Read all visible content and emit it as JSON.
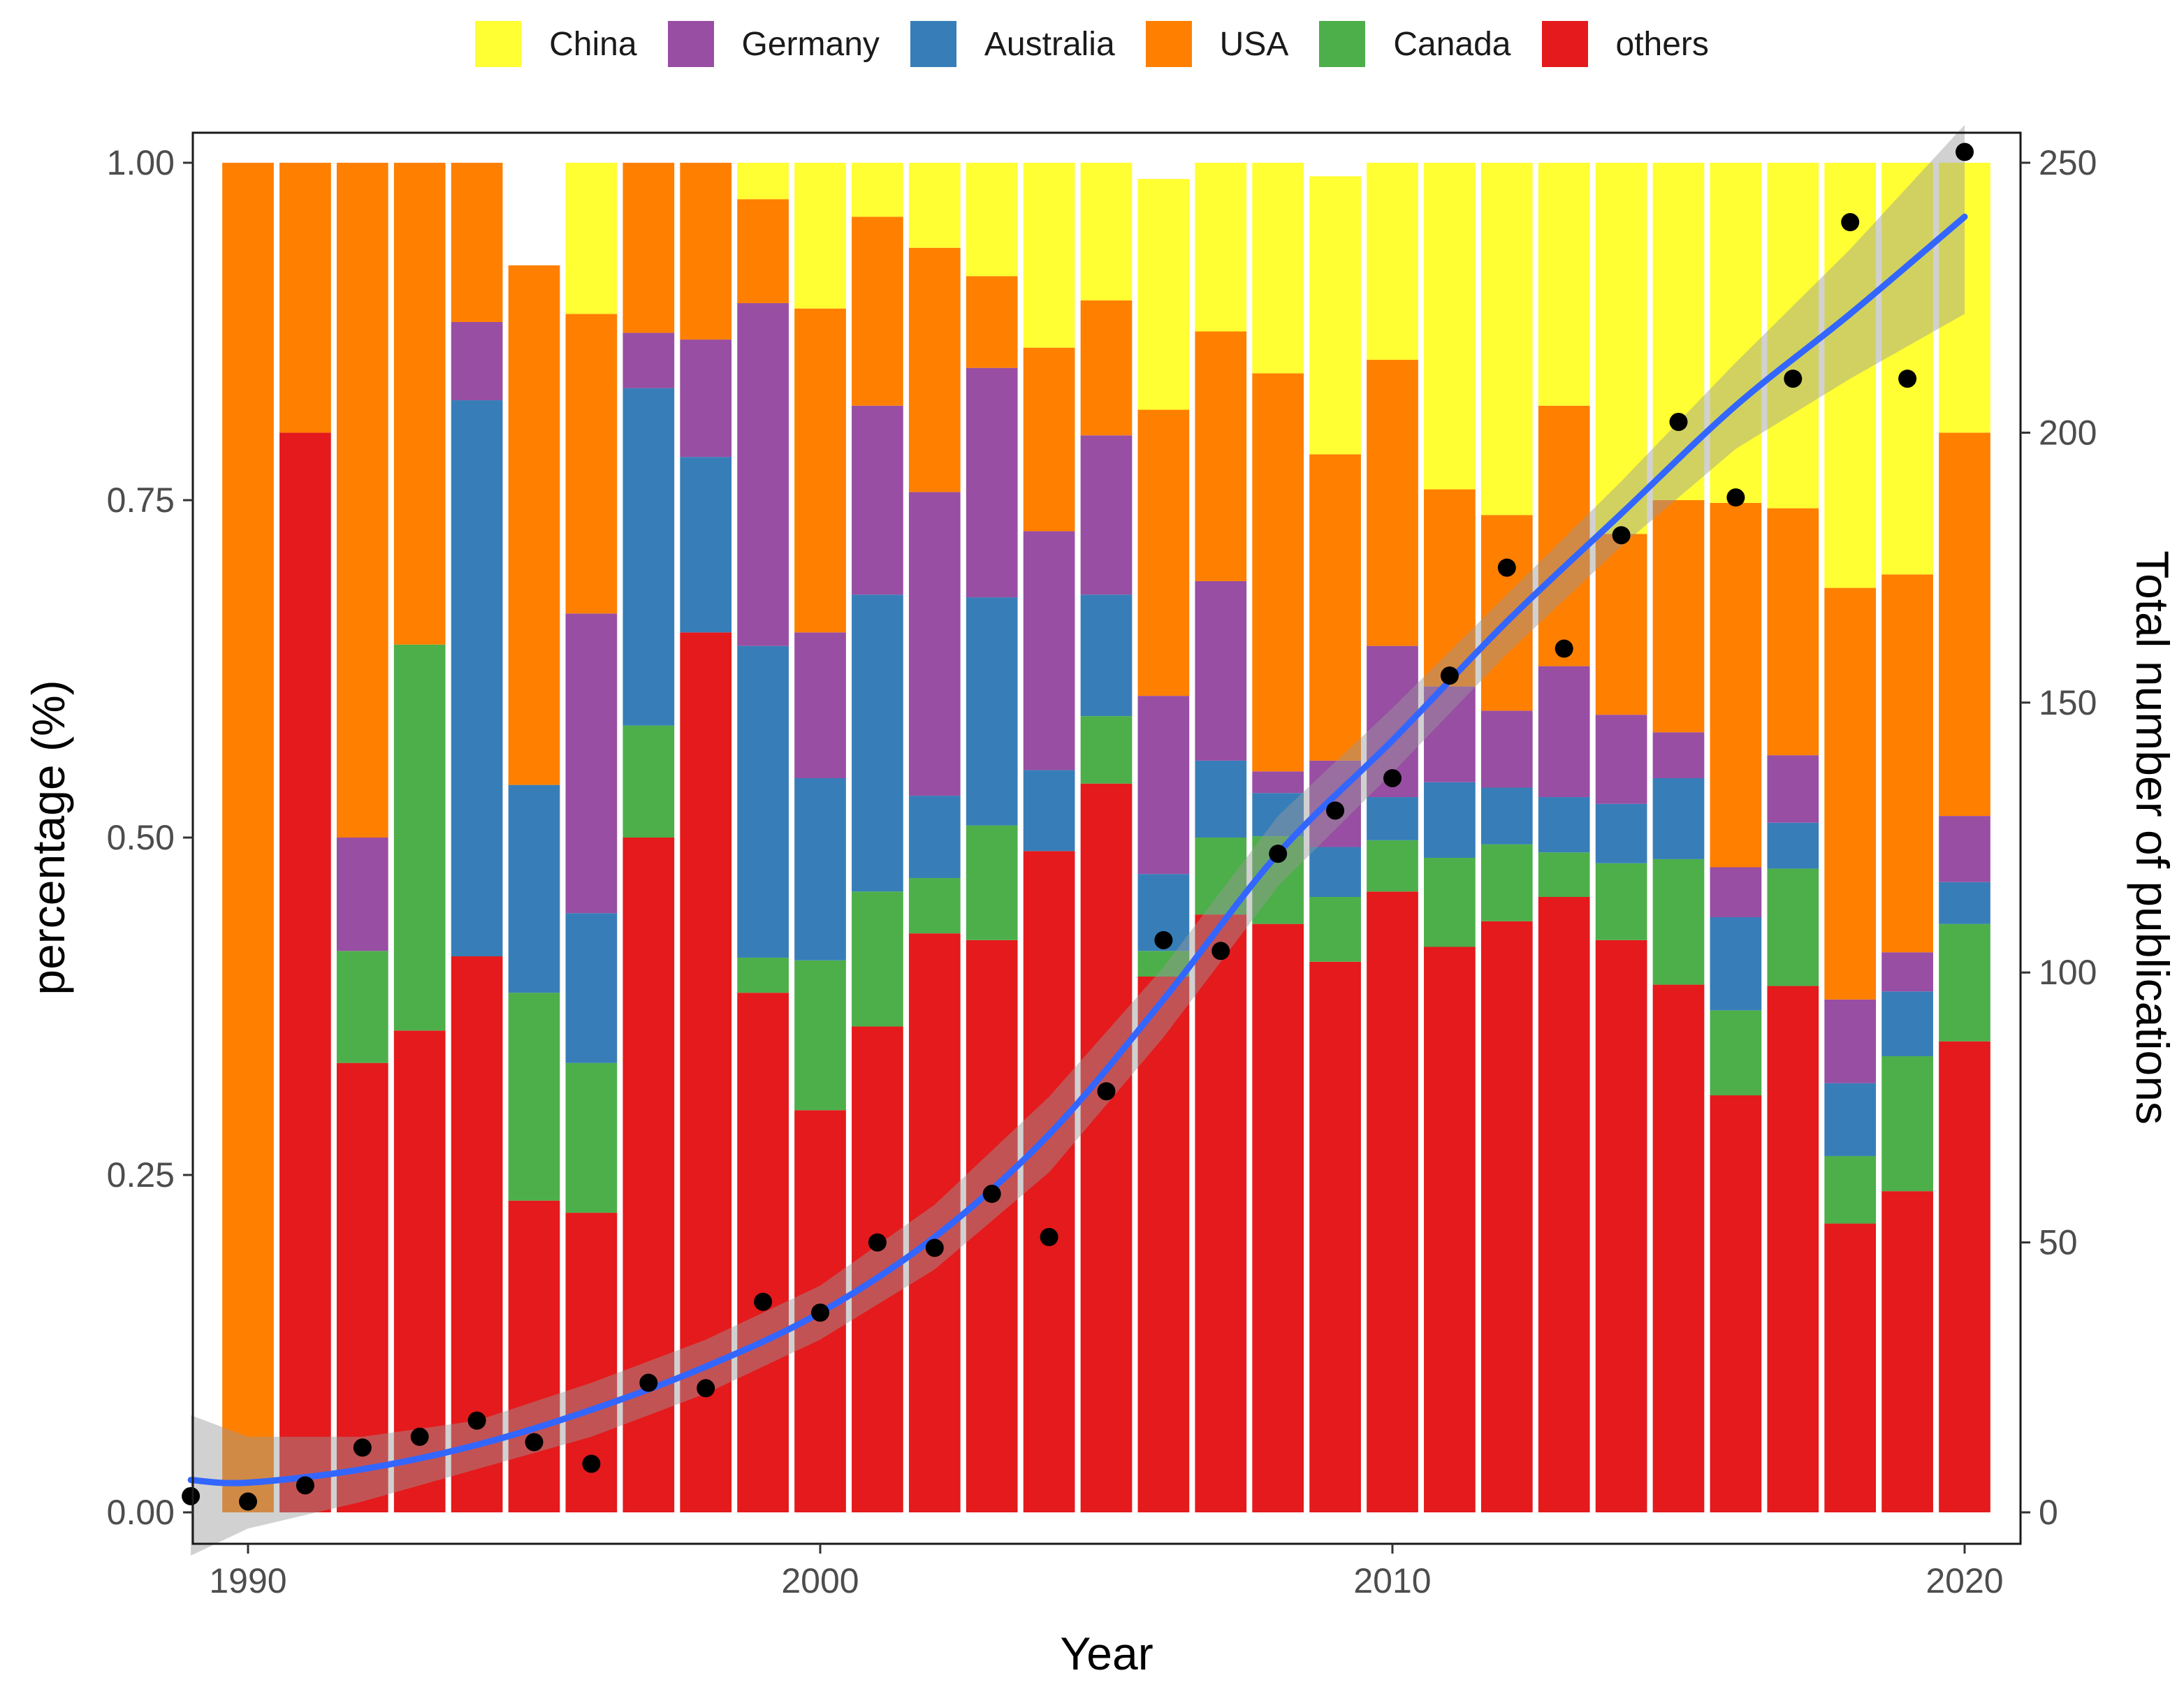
{
  "chart_data": {
    "type": "bar",
    "stacked": true,
    "normalized": true,
    "xlabel": "Year",
    "ylabel": "percentage (%)",
    "y2label": "Total number of publications",
    "ylim": [
      0,
      1
    ],
    "y2lim": [
      0,
      250
    ],
    "xlim": [
      1989,
      2020
    ],
    "yticks": [
      "0.00",
      "0.25",
      "0.50",
      "0.75",
      "1.00"
    ],
    "y2ticks": [
      "0",
      "50",
      "100",
      "150",
      "200",
      "250"
    ],
    "xticks": [
      "1990",
      "2000",
      "2010",
      "2020"
    ],
    "legend_position": "top",
    "categories": [
      1990,
      1991,
      1992,
      1993,
      1994,
      1995,
      1996,
      1997,
      1998,
      1999,
      2000,
      2001,
      2002,
      2003,
      2004,
      2005,
      2006,
      2007,
      2008,
      2009,
      2010,
      2011,
      2012,
      2013,
      2014,
      2015,
      2016,
      2017,
      2018,
      2019,
      2020
    ],
    "stack_order_bottom_to_top": [
      "others",
      "Canada",
      "Australia",
      "Germany",
      "USA",
      "China"
    ],
    "legend_order": [
      "China",
      "Germany",
      "Australia",
      "USA",
      "Canada",
      "others"
    ],
    "colors": {
      "China": "#FFFF33",
      "Germany": "#984EA3",
      "Australia": "#377EB8",
      "USA": "#FF7F00",
      "Canada": "#4DAF4A",
      "others": "#E41A1C"
    },
    "series": [
      {
        "name": "others",
        "values": [
          0,
          0.8,
          0.333,
          0.357,
          0.412,
          0.231,
          0.222,
          0.5,
          0.652,
          0.385,
          0.298,
          0.36,
          0.429,
          0.424,
          0.49,
          0.54,
          0.397,
          0.443,
          0.436,
          0.408,
          0.46,
          0.419,
          0.438,
          0.456,
          0.424,
          0.391,
          0.309,
          0.39,
          0.214,
          0.238,
          0.349
        ]
      },
      {
        "name": "Canada",
        "values": [
          0,
          0,
          0.083,
          0.286,
          0,
          0.154,
          0.111,
          0.083,
          0,
          0.026,
          0.111,
          0.1,
          0.041,
          0.085,
          0,
          0.05,
          0.019,
          0.057,
          0.065,
          0.048,
          0.038,
          0.066,
          0.057,
          0.033,
          0.057,
          0.093,
          0.063,
          0.087,
          0.05,
          0.1,
          0.087
        ]
      },
      {
        "name": "Australia",
        "values": [
          0,
          0,
          0,
          0,
          0.412,
          0.154,
          0.111,
          0.25,
          0.13,
          0.231,
          0.135,
          0.22,
          0.061,
          0.169,
          0.06,
          0.09,
          0.057,
          0.057,
          0.032,
          0.037,
          0.032,
          0.056,
          0.042,
          0.041,
          0.044,
          0.06,
          0.069,
          0.034,
          0.054,
          0.048,
          0.031
        ]
      },
      {
        "name": "Germany",
        "values": [
          0,
          0,
          0.084,
          0,
          0.058,
          0,
          0.222,
          0.041,
          0.087,
          0.254,
          0.108,
          0.14,
          0.225,
          0.17,
          0.177,
          0.118,
          0.132,
          0.133,
          0.016,
          0.064,
          0.112,
          0.071,
          0.057,
          0.097,
          0.066,
          0.034,
          0.037,
          0.05,
          0.062,
          0.029,
          0.049
        ]
      },
      {
        "name": "USA",
        "values": [
          1.0,
          0.2,
          0.5,
          0.357,
          0.118,
          0.385,
          0.222,
          0.126,
          0.131,
          0.077,
          0.24,
          0.14,
          0.181,
          0.068,
          0.136,
          0.1,
          0.212,
          0.185,
          0.295,
          0.227,
          0.212,
          0.146,
          0.145,
          0.193,
          0.134,
          0.172,
          0.27,
          0.183,
          0.305,
          0.28,
          0.284
        ]
      },
      {
        "name": "China",
        "values": [
          0,
          0,
          0,
          0,
          0,
          0,
          0.112,
          0,
          0,
          0.027,
          0.108,
          0.04,
          0.063,
          0.084,
          0.137,
          0.102,
          0.171,
          0.125,
          0.156,
          0.206,
          0.146,
          0.242,
          0.261,
          0.18,
          0.275,
          0.25,
          0.252,
          0.256,
          0.315,
          0.305,
          0.2
        ]
      }
    ],
    "total_publications": {
      "x": [
        1989,
        1990,
        1991,
        1992,
        1993,
        1994,
        1995,
        1996,
        1997,
        1998,
        1999,
        2000,
        2001,
        2002,
        2003,
        2004,
        2005,
        2006,
        2007,
        2008,
        2009,
        2010,
        2011,
        2012,
        2013,
        2014,
        2015,
        2016,
        2017,
        2018,
        2019,
        2020
      ],
      "y": [
        3,
        2,
        5,
        12,
        14,
        17,
        13,
        9,
        24,
        23,
        39,
        37,
        50,
        49,
        59,
        51,
        78,
        106,
        104,
        122,
        130,
        136,
        155,
        175,
        160,
        181,
        202,
        188,
        210,
        239,
        210,
        252
      ]
    },
    "trend_line": {
      "type": "smooth",
      "color": "#3366FF",
      "confidence_band": true,
      "x": [
        1989,
        1990,
        1992,
        1994,
        1996,
        1998,
        2000,
        2002,
        2004,
        2006,
        2008,
        2010,
        2012,
        2014,
        2016,
        2018,
        2020
      ],
      "y": [
        6,
        5.5,
        8,
        12.5,
        19,
        27,
        37,
        51,
        70,
        95,
        122,
        143,
        165,
        185,
        205,
        222,
        240
      ],
      "band_lower": [
        -8,
        -3,
        2,
        8,
        14,
        22,
        32,
        45,
        63,
        88,
        116,
        137,
        159,
        179,
        197,
        210,
        222
      ],
      "band_upper": [
        18,
        14,
        14,
        17,
        24,
        32,
        42,
        57,
        77,
        101,
        129,
        149,
        170,
        191,
        213,
        234,
        257
      ]
    }
  }
}
